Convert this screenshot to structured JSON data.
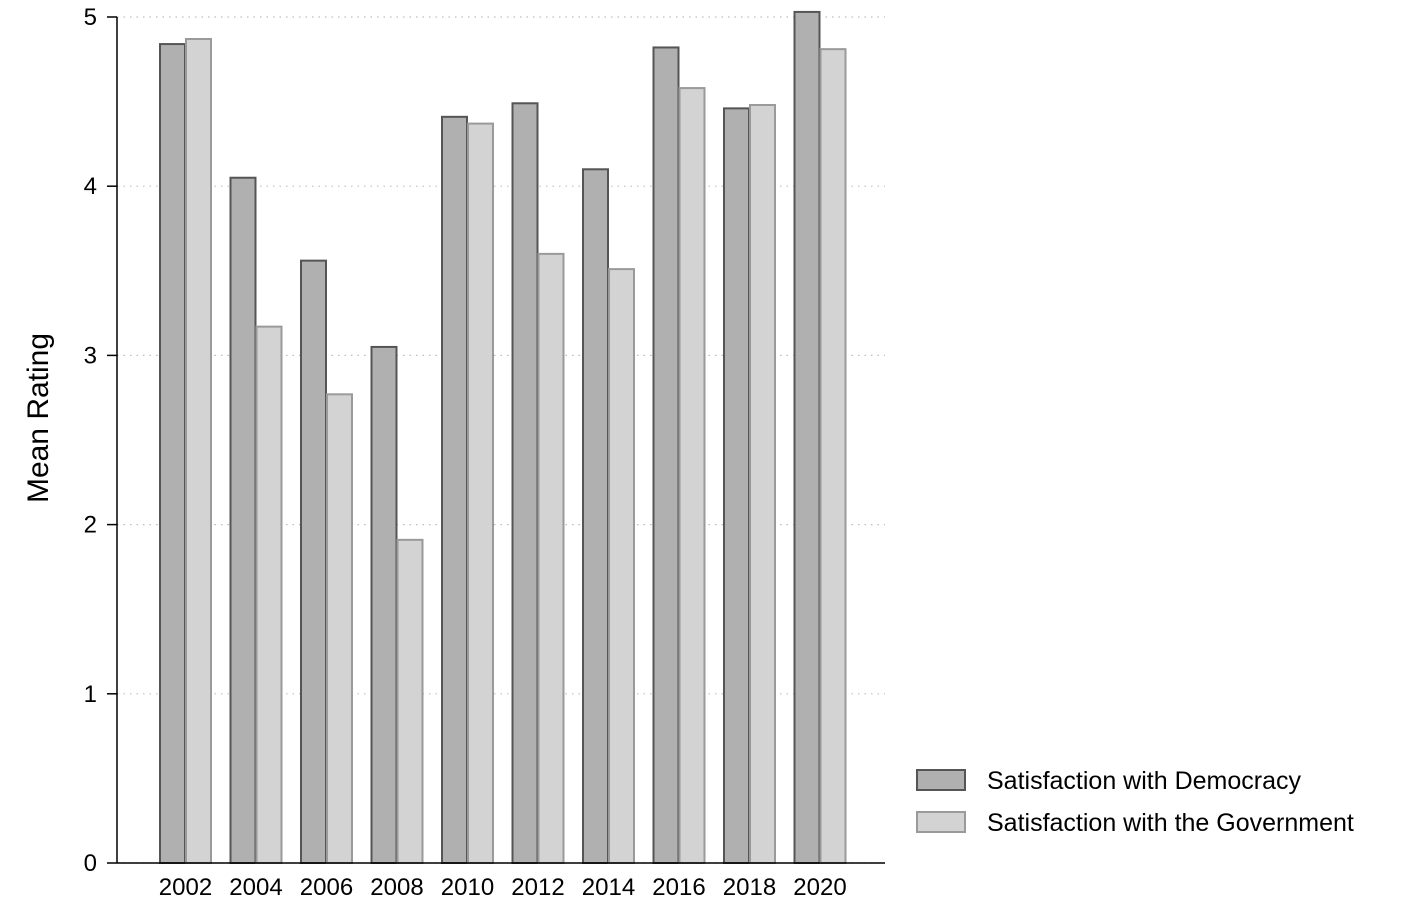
{
  "chart_data": {
    "type": "bar",
    "categories": [
      "2002",
      "2004",
      "2006",
      "2008",
      "2010",
      "2012",
      "2014",
      "2016",
      "2018",
      "2020"
    ],
    "series": [
      {
        "name": "Satisfaction with Democracy",
        "values": [
          4.84,
          4.05,
          3.56,
          3.05,
          4.41,
          4.49,
          4.1,
          4.82,
          4.46,
          5.03
        ],
        "color": "#b0b0b0",
        "stroke": "#555555"
      },
      {
        "name": "Satisfaction with the Government",
        "values": [
          4.87,
          3.17,
          2.77,
          1.91,
          4.37,
          3.6,
          3.51,
          4.58,
          4.48,
          4.81
        ],
        "color": "#d3d3d3",
        "stroke": "#9a9a9a"
      }
    ],
    "title": "",
    "xlabel": "",
    "ylabel": "Mean Rating",
    "ylim": [
      0,
      5
    ],
    "yticks": [
      "0",
      "1",
      "2",
      "3",
      "4",
      "5"
    ],
    "grid": true,
    "legend_position": "bottom-right"
  }
}
